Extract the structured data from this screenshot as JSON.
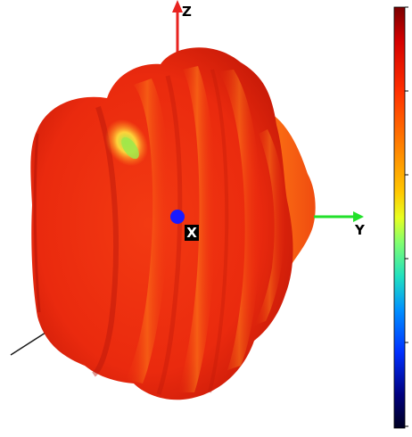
{
  "axes": {
    "z_label": "Z",
    "y_label": "Y",
    "x_label": "X",
    "colors": {
      "z_axis": "#e8231f",
      "y_axis": "#22e02a",
      "x_axis": "#1a1a1a"
    }
  },
  "colorbar": {
    "colors": [
      "#7a0000",
      "#d40000",
      "#ff3000",
      "#ff7a00",
      "#ffc800",
      "#e8ff20",
      "#80ff70",
      "#20e0c0",
      "#0090ff",
      "#0030ff",
      "#000080",
      "#000020"
    ]
  },
  "surface": {
    "colors": {
      "base": "#ee2a10",
      "ridge": "#ff8a1a",
      "highlight": "#ffd23a",
      "hotspot": "#9fe84a",
      "shadow": "#b5160a"
    }
  },
  "origin_marker": {
    "color": "#1a1aff"
  }
}
